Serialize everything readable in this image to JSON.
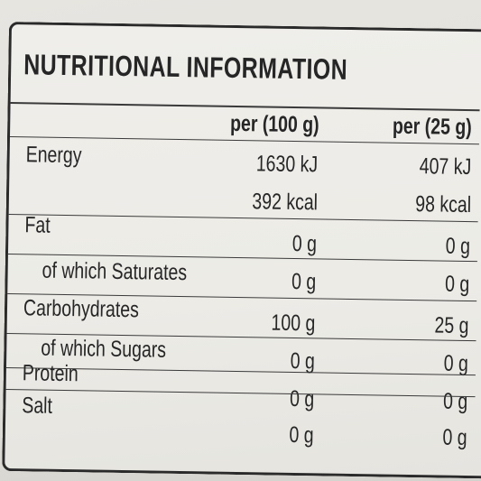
{
  "label": {
    "title": "NUTRITIONAL INFORMATION",
    "columns": [
      "per (100 g)",
      "per (25 g)"
    ],
    "rows": [
      {
        "name": "Energy",
        "per100": "1630 kJ",
        "per25": "407 kJ"
      },
      {
        "name": "",
        "per100": "392 kcal",
        "per25": "98 kcal"
      },
      {
        "name": "Fat",
        "per100": "0 g",
        "per25": "0 g"
      },
      {
        "name": "of which Saturates",
        "per100": "0 g",
        "per25": "0 g"
      },
      {
        "name": "Carbohydrates",
        "per100": "100 g",
        "per25": "25 g"
      },
      {
        "name": "of which Sugars",
        "per100": "0 g",
        "per25": "0 g"
      },
      {
        "name": "Protein",
        "per100": "0 g",
        "per25": "0 g"
      },
      {
        "name": "Salt",
        "per100": "0 g",
        "per25": "0 g"
      }
    ]
  }
}
